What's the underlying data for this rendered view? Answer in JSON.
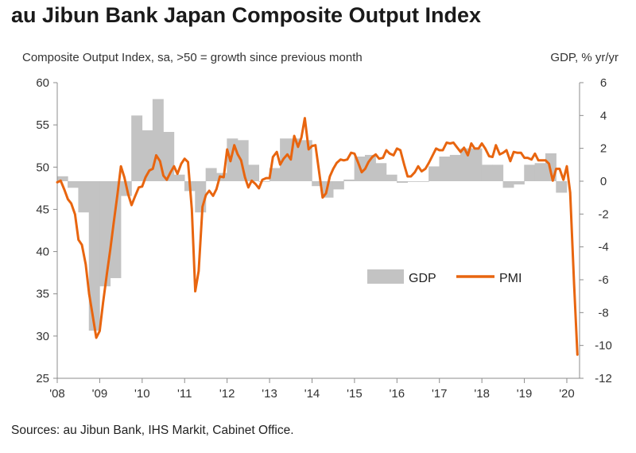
{
  "title": "au Jibun Bank Japan Composite Output Index",
  "source": "Sources: au Jibun Bank, IHS Markit, Cabinet Office.",
  "chart_data": {
    "type": "bar+line",
    "title": "au Jibun Bank Japan Composite Output Index",
    "left_axis_label": "Composite Output Index, sa, >50 = growth since previous month",
    "right_axis_label": "GDP, % yr/yr",
    "left_ylim": [
      25,
      60
    ],
    "left_ticks": [
      "25",
      "30",
      "35",
      "40",
      "45",
      "50",
      "55",
      "60"
    ],
    "right_ylim": [
      -12,
      6
    ],
    "right_ticks": [
      "-12",
      "-10",
      "-8",
      "-6",
      "-4",
      "-2",
      "0",
      "2",
      "4",
      "6"
    ],
    "x_ticks": [
      "'08",
      "'09",
      "'10",
      "'11",
      "'12",
      "'13",
      "'14",
      "'15",
      "'16",
      "'17",
      "'18",
      "'19",
      "'20"
    ],
    "xlim": [
      2008.0,
      2020.3
    ],
    "legend": [
      "GDP",
      "PMI"
    ],
    "legend_placement": "right-middle",
    "colors": {
      "gdp": "#c3c3c3",
      "pmi": "#e8650f",
      "axis": "#8c8c8c"
    },
    "gdp": {
      "name": "GDP",
      "x": [
        2008.0,
        2008.25,
        2008.5,
        2008.75,
        2009.0,
        2009.25,
        2009.5,
        2009.75,
        2010.0,
        2010.25,
        2010.5,
        2010.75,
        2011.0,
        2011.25,
        2011.5,
        2011.75,
        2012.0,
        2012.25,
        2012.5,
        2012.75,
        2013.0,
        2013.25,
        2013.5,
        2013.75,
        2014.0,
        2014.25,
        2014.5,
        2014.75,
        2015.0,
        2015.25,
        2015.5,
        2015.75,
        2016.0,
        2016.25,
        2016.5,
        2016.75,
        2017.0,
        2017.25,
        2017.5,
        2017.75,
        2018.0,
        2018.25,
        2018.5,
        2018.75,
        2019.0,
        2019.25,
        2019.5,
        2019.75
      ],
      "values": [
        0.3,
        -0.4,
        -1.9,
        -9.1,
        -6.4,
        -5.9,
        -0.9,
        4.0,
        3.1,
        5.0,
        3.0,
        0.4,
        -0.6,
        -1.9,
        0.8,
        0.5,
        2.6,
        2.5,
        1.0,
        0.0,
        0.8,
        2.6,
        2.6,
        2.5,
        -0.3,
        -1.0,
        -0.5,
        0.1,
        1.5,
        1.6,
        1.1,
        0.4,
        -0.1,
        0.0,
        0.0,
        0.9,
        1.5,
        1.6,
        2.0,
        2.0,
        1.0,
        1.0,
        -0.4,
        -0.2,
        1.0,
        1.1,
        1.7,
        -0.7
      ]
    },
    "pmi": {
      "name": "PMI",
      "x": [
        2008.0,
        2008.08,
        2008.17,
        2008.25,
        2008.33,
        2008.42,
        2008.5,
        2008.58,
        2008.67,
        2008.75,
        2008.83,
        2008.92,
        2009.0,
        2009.08,
        2009.17,
        2009.25,
        2009.33,
        2009.42,
        2009.5,
        2009.58,
        2009.67,
        2009.75,
        2009.83,
        2009.92,
        2010.0,
        2010.08,
        2010.17,
        2010.25,
        2010.33,
        2010.42,
        2010.5,
        2010.58,
        2010.67,
        2010.75,
        2010.83,
        2010.92,
        2011.0,
        2011.08,
        2011.17,
        2011.25,
        2011.33,
        2011.42,
        2011.5,
        2011.58,
        2011.67,
        2011.75,
        2011.83,
        2011.92,
        2012.0,
        2012.08,
        2012.17,
        2012.25,
        2012.33,
        2012.42,
        2012.5,
        2012.58,
        2012.67,
        2012.75,
        2012.83,
        2012.92,
        2013.0,
        2013.08,
        2013.17,
        2013.25,
        2013.33,
        2013.42,
        2013.5,
        2013.58,
        2013.67,
        2013.75,
        2013.83,
        2013.92,
        2014.0,
        2014.08,
        2014.17,
        2014.25,
        2014.33,
        2014.42,
        2014.5,
        2014.58,
        2014.67,
        2014.75,
        2014.83,
        2014.92,
        2015.0,
        2015.08,
        2015.17,
        2015.25,
        2015.33,
        2015.42,
        2015.5,
        2015.58,
        2015.67,
        2015.75,
        2015.83,
        2015.92,
        2016.0,
        2016.08,
        2016.17,
        2016.25,
        2016.33,
        2016.42,
        2016.5,
        2016.58,
        2016.67,
        2016.75,
        2016.83,
        2016.92,
        2017.0,
        2017.08,
        2017.17,
        2017.25,
        2017.33,
        2017.42,
        2017.5,
        2017.58,
        2017.67,
        2017.75,
        2017.83,
        2017.92,
        2018.0,
        2018.08,
        2018.17,
        2018.25,
        2018.33,
        2018.42,
        2018.5,
        2018.58,
        2018.67,
        2018.75,
        2018.83,
        2018.92,
        2019.0,
        2019.08,
        2019.17,
        2019.25,
        2019.33,
        2019.42,
        2019.5,
        2019.58,
        2019.67,
        2019.75,
        2019.83,
        2019.92,
        2020.0,
        2020.08,
        2020.17,
        2020.25
      ],
      "values": [
        48.2,
        48.4,
        47.3,
        46.2,
        45.7,
        44.4,
        41.4,
        40.8,
        38.5,
        35.0,
        32.6,
        29.8,
        30.6,
        34.0,
        37.4,
        40.3,
        43.4,
        46.8,
        50.1,
        48.8,
        46.8,
        45.5,
        46.5,
        47.6,
        47.7,
        48.8,
        49.6,
        49.8,
        51.4,
        50.7,
        49.0,
        48.5,
        49.4,
        50.1,
        49.2,
        50.4,
        51.0,
        50.6,
        45.0,
        35.3,
        37.7,
        45.3,
        46.7,
        47.2,
        46.6,
        47.4,
        48.9,
        48.8,
        52.1,
        50.7,
        52.6,
        51.5,
        50.8,
        48.8,
        47.6,
        48.4,
        48.0,
        47.5,
        48.5,
        48.7,
        48.7,
        51.2,
        51.8,
        50.3,
        51.0,
        51.5,
        50.9,
        53.7,
        52.4,
        53.5,
        55.8,
        52.1,
        52.5,
        52.6,
        49.3,
        46.4,
        46.9,
        48.9,
        49.8,
        50.5,
        50.9,
        50.8,
        50.9,
        51.7,
        51.6,
        50.6,
        49.4,
        49.8,
        50.6,
        51.2,
        51.5,
        51.0,
        51.1,
        52.0,
        51.6,
        51.4,
        52.2,
        52.0,
        50.3,
        48.9,
        48.9,
        49.4,
        50.1,
        49.5,
        49.8,
        50.5,
        51.3,
        52.2,
        52.0,
        52.0,
        52.9,
        52.8,
        52.9,
        52.3,
        51.8,
        52.3,
        51.4,
        52.8,
        52.2,
        52.2,
        52.8,
        52.2,
        51.3,
        51.2,
        52.6,
        51.5,
        51.7,
        52.0,
        50.7,
        51.8,
        51.7,
        51.7,
        51.1,
        51.1,
        50.9,
        51.6,
        50.8,
        50.8,
        50.8,
        50.4,
        48.4,
        49.8,
        49.8,
        48.5,
        50.1,
        47.0,
        36.2,
        27.8
      ]
    }
  }
}
